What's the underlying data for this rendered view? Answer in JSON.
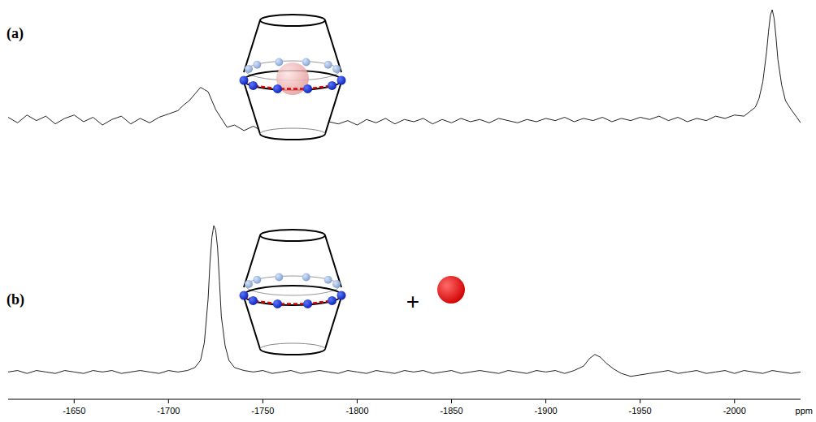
{
  "chart_data": {
    "type": "line",
    "xlabel": "ppm",
    "xlim": [
      -1615,
      -2035
    ],
    "xticks": [
      -1650,
      -1700,
      -1750,
      -1800,
      -1850,
      -1900,
      -1950,
      -2000
    ],
    "ylim": [
      -12,
      100
    ],
    "tick_labels": "x",
    "grid": false,
    "annotations": [
      "+"
    ],
    "series": [
      {
        "name": "(a)",
        "color": "#222222",
        "x": [
          -1615,
          -1620,
          -1625,
          -1630,
          -1635,
          -1640,
          -1645,
          -1650,
          -1655,
          -1660,
          -1665,
          -1670,
          -1675,
          -1680,
          -1685,
          -1690,
          -1695,
          -1700,
          -1705,
          -1708,
          -1711,
          -1714,
          -1717,
          -1719,
          -1721,
          -1723,
          -1725,
          -1728,
          -1731,
          -1735,
          -1740,
          -1745,
          -1750,
          -1755,
          -1760,
          -1765,
          -1770,
          -1775,
          -1780,
          -1785,
          -1790,
          -1795,
          -1800,
          -1805,
          -1810,
          -1815,
          -1820,
          -1825,
          -1830,
          -1835,
          -1840,
          -1845,
          -1850,
          -1855,
          -1860,
          -1865,
          -1870,
          -1875,
          -1880,
          -1885,
          -1890,
          -1895,
          -1900,
          -1905,
          -1910,
          -1915,
          -1920,
          -1925,
          -1930,
          -1935,
          -1940,
          -1945,
          -1950,
          -1955,
          -1960,
          -1965,
          -1970,
          -1975,
          -1980,
          -1985,
          -1990,
          -1995,
          -2000,
          -2005,
          -2008,
          -2011,
          -2013,
          -2015,
          -2017,
          -2018,
          -2019,
          -2020,
          -2021,
          -2022,
          -2023,
          -2025,
          -2027,
          -2030,
          -2033,
          -2035
        ],
        "values": [
          3,
          -2,
          5,
          0,
          4,
          -3,
          2,
          5,
          -1,
          3,
          -4,
          1,
          4,
          -3,
          2,
          -2,
          3,
          6,
          9,
          14,
          18,
          24,
          30,
          28,
          26,
          18,
          10,
          2,
          -6,
          -4,
          -9,
          -5,
          -10,
          -6,
          -8,
          -3,
          -6,
          -2,
          -5,
          -1,
          -3,
          0,
          -4,
          1,
          -2,
          2,
          -3,
          1,
          -1,
          2,
          -3,
          1,
          -2,
          2,
          -1,
          1,
          -2,
          2,
          0,
          -2,
          1,
          -1,
          2,
          0,
          3,
          -1,
          2,
          0,
          3,
          -1,
          2,
          0,
          3,
          1,
          4,
          0,
          3,
          -1,
          2,
          0,
          4,
          2,
          5,
          4,
          8,
          12,
          20,
          35,
          62,
          80,
          95,
          100,
          92,
          75,
          55,
          32,
          18,
          10,
          3,
          -2
        ]
      },
      {
        "name": "(b)",
        "color": "#222222",
        "x": [
          -1615,
          -1620,
          -1625,
          -1630,
          -1635,
          -1640,
          -1645,
          -1650,
          -1655,
          -1660,
          -1665,
          -1670,
          -1675,
          -1680,
          -1685,
          -1690,
          -1695,
          -1700,
          -1705,
          -1710,
          -1714,
          -1717,
          -1719,
          -1721,
          -1722,
          -1723,
          -1724,
          -1725,
          -1726,
          -1727,
          -1728,
          -1730,
          -1732,
          -1735,
          -1740,
          -1745,
          -1750,
          -1755,
          -1760,
          -1765,
          -1770,
          -1775,
          -1780,
          -1785,
          -1790,
          -1795,
          -1800,
          -1805,
          -1810,
          -1815,
          -1820,
          -1825,
          -1830,
          -1835,
          -1840,
          -1845,
          -1850,
          -1855,
          -1860,
          -1865,
          -1870,
          -1875,
          -1880,
          -1885,
          -1890,
          -1895,
          -1900,
          -1905,
          -1910,
          -1915,
          -1920,
          -1923,
          -1926,
          -1929,
          -1932,
          -1936,
          -1940,
          -1945,
          -1950,
          -1955,
          -1960,
          -1965,
          -1970,
          -1975,
          -1980,
          -1985,
          -1990,
          -1995,
          -2000,
          -2005,
          -2010,
          -2015,
          -2020,
          -2025,
          -2030,
          -2035
        ],
        "values": [
          0,
          1,
          -1,
          1,
          0,
          -1,
          1,
          0,
          -1,
          1,
          0,
          1,
          -1,
          0,
          1,
          0,
          -1,
          1,
          0,
          1,
          3,
          8,
          20,
          50,
          75,
          92,
          100,
          97,
          85,
          62,
          38,
          18,
          8,
          3,
          1,
          0,
          1,
          -1,
          0,
          1,
          -1,
          0,
          1,
          0,
          -1,
          1,
          0,
          -1,
          1,
          0,
          -1,
          1,
          0,
          1,
          -1,
          0,
          1,
          -1,
          0,
          1,
          0,
          -1,
          1,
          0,
          -1,
          1,
          0,
          1,
          -1,
          1,
          4,
          9,
          12,
          10,
          6,
          2,
          -1,
          -3,
          -2,
          -1,
          0,
          1,
          -1,
          0,
          1,
          -1,
          0,
          1,
          -1,
          1,
          0,
          -1,
          1,
          0,
          -1,
          0
        ]
      }
    ]
  }
}
